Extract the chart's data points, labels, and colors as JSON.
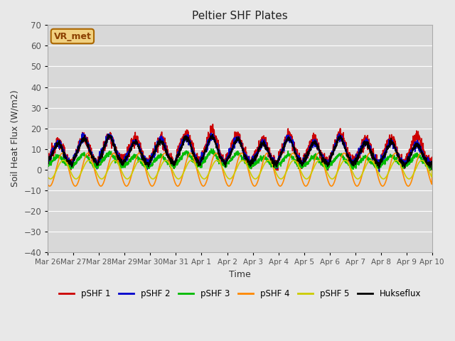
{
  "title": "Peltier SHF Plates",
  "xlabel": "Time",
  "ylabel": "Soil Heat Flux (W/m2)",
  "ylim": [
    -40,
    70
  ],
  "y_ticks": [
    -40,
    -30,
    -20,
    -10,
    0,
    10,
    20,
    30,
    40,
    50,
    60,
    70
  ],
  "total_days": 15,
  "background_color": "#e8e8e8",
  "plot_bg_color": "#d8d8d8",
  "series": [
    {
      "label": "pSHF 1",
      "color": "#cc0000",
      "lw": 1.2
    },
    {
      "label": "pSHF 2",
      "color": "#0000cc",
      "lw": 1.2
    },
    {
      "label": "pSHF 3",
      "color": "#00bb00",
      "lw": 1.2
    },
    {
      "label": "pSHF 4",
      "color": "#ff8800",
      "lw": 1.2
    },
    {
      "label": "pSHF 5",
      "color": "#cccc00",
      "lw": 1.2
    },
    {
      "label": "Hukseflux",
      "color": "#000000",
      "lw": 1.2
    }
  ],
  "tick_labels": [
    "Mar 26",
    "Mar 27",
    "Mar 28",
    "Mar 29",
    "Mar 30",
    "Mar 31",
    "Apr 1",
    "Apr 2",
    "Apr 3",
    "Apr 4",
    "Apr 5",
    "Apr 6",
    "Apr 7",
    "Apr 8",
    "Apr 9",
    "Apr 10"
  ],
  "annotation_text": "VR_met",
  "tick_label_color": "#555555"
}
